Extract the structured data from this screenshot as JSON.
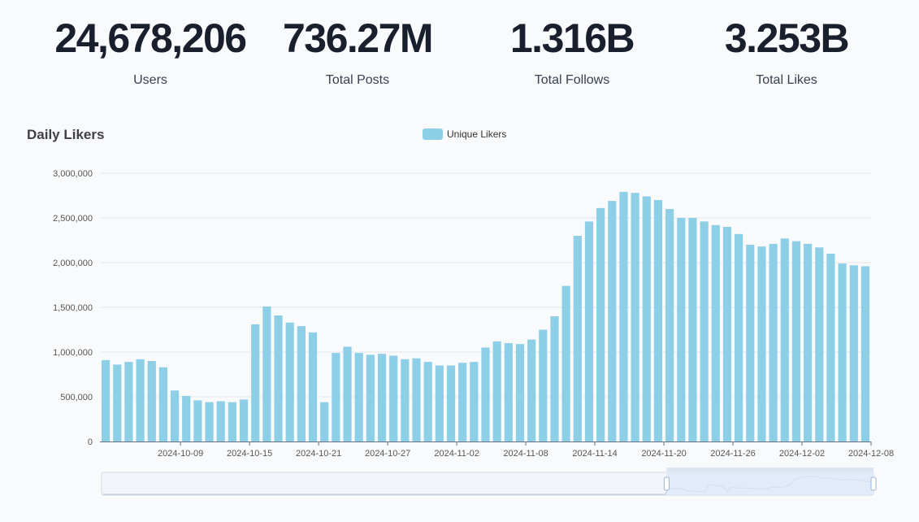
{
  "stats": [
    {
      "value": "24,678,206",
      "label": "Users"
    },
    {
      "value": "736.27M",
      "label": "Total Posts"
    },
    {
      "value": "1.316B",
      "label": "Total Follows"
    },
    {
      "value": "3.253B",
      "label": "Total Likes"
    }
  ],
  "chart_data": {
    "type": "bar",
    "title": "Daily Likers",
    "legend": {
      "entries": [
        "Unique Likers"
      ],
      "position": "top-center"
    },
    "colors": {
      "bar": "#8ecfe8",
      "grid": "#e5e7eb",
      "axis": "#6b7280",
      "zoom_window": "#dbe7f8",
      "zoom_handle": "#9bb5d6"
    },
    "ylim": [
      0,
      3000000
    ],
    "yticks": [
      "0",
      "500,000",
      "1,000,000",
      "1,500,000",
      "2,000,000",
      "2,500,000",
      "3,000,000"
    ],
    "xticks": [
      "2024-10-09",
      "2024-10-15",
      "2024-10-21",
      "2024-10-27",
      "2024-11-02",
      "2024-11-08",
      "2024-11-14",
      "2024-11-20",
      "2024-11-26",
      "2024-12-02",
      "2024-12-08"
    ],
    "grid": true,
    "has_zoom_slider": true,
    "categories": [
      "2024-10-03",
      "2024-10-04",
      "2024-10-05",
      "2024-10-06",
      "2024-10-07",
      "2024-10-08",
      "2024-10-09",
      "2024-10-10",
      "2024-10-11",
      "2024-10-12",
      "2024-10-13",
      "2024-10-14",
      "2024-10-15",
      "2024-10-16",
      "2024-10-17",
      "2024-10-18",
      "2024-10-19",
      "2024-10-20",
      "2024-10-21",
      "2024-10-22",
      "2024-10-23",
      "2024-10-24",
      "2024-10-25",
      "2024-10-26",
      "2024-10-27",
      "2024-10-28",
      "2024-10-29",
      "2024-10-30",
      "2024-10-31",
      "2024-11-01",
      "2024-11-02",
      "2024-11-03",
      "2024-11-04",
      "2024-11-05",
      "2024-11-06",
      "2024-11-07",
      "2024-11-08",
      "2024-11-09",
      "2024-11-10",
      "2024-11-11",
      "2024-11-12",
      "2024-11-13",
      "2024-11-14",
      "2024-11-15",
      "2024-11-16",
      "2024-11-17",
      "2024-11-18",
      "2024-11-19",
      "2024-11-20",
      "2024-11-21",
      "2024-11-22",
      "2024-11-23",
      "2024-11-24",
      "2024-11-25",
      "2024-11-26",
      "2024-11-27",
      "2024-11-28",
      "2024-11-29",
      "2024-11-30",
      "2024-12-01",
      "2024-12-02",
      "2024-12-03",
      "2024-12-04",
      "2024-12-05",
      "2024-12-06",
      "2024-12-07",
      "2024-12-08"
    ],
    "series": [
      {
        "name": "Unique Likers",
        "values": [
          910000,
          860000,
          890000,
          920000,
          900000,
          830000,
          570000,
          510000,
          460000,
          440000,
          450000,
          440000,
          470000,
          1310000,
          1510000,
          1410000,
          1330000,
          1290000,
          1220000,
          440000,
          990000,
          1060000,
          990000,
          970000,
          980000,
          960000,
          920000,
          930000,
          890000,
          850000,
          850000,
          880000,
          890000,
          1050000,
          1120000,
          1100000,
          1090000,
          1140000,
          1250000,
          1400000,
          1740000,
          2300000,
          2460000,
          2610000,
          2690000,
          2790000,
          2780000,
          2740000,
          2700000,
          2600000,
          2500000,
          2500000,
          2460000,
          2420000,
          2400000,
          2320000,
          2200000,
          2180000,
          2210000,
          2270000,
          2240000,
          2210000,
          2170000,
          2100000,
          1990000,
          1970000,
          1960000
        ]
      }
    ]
  }
}
